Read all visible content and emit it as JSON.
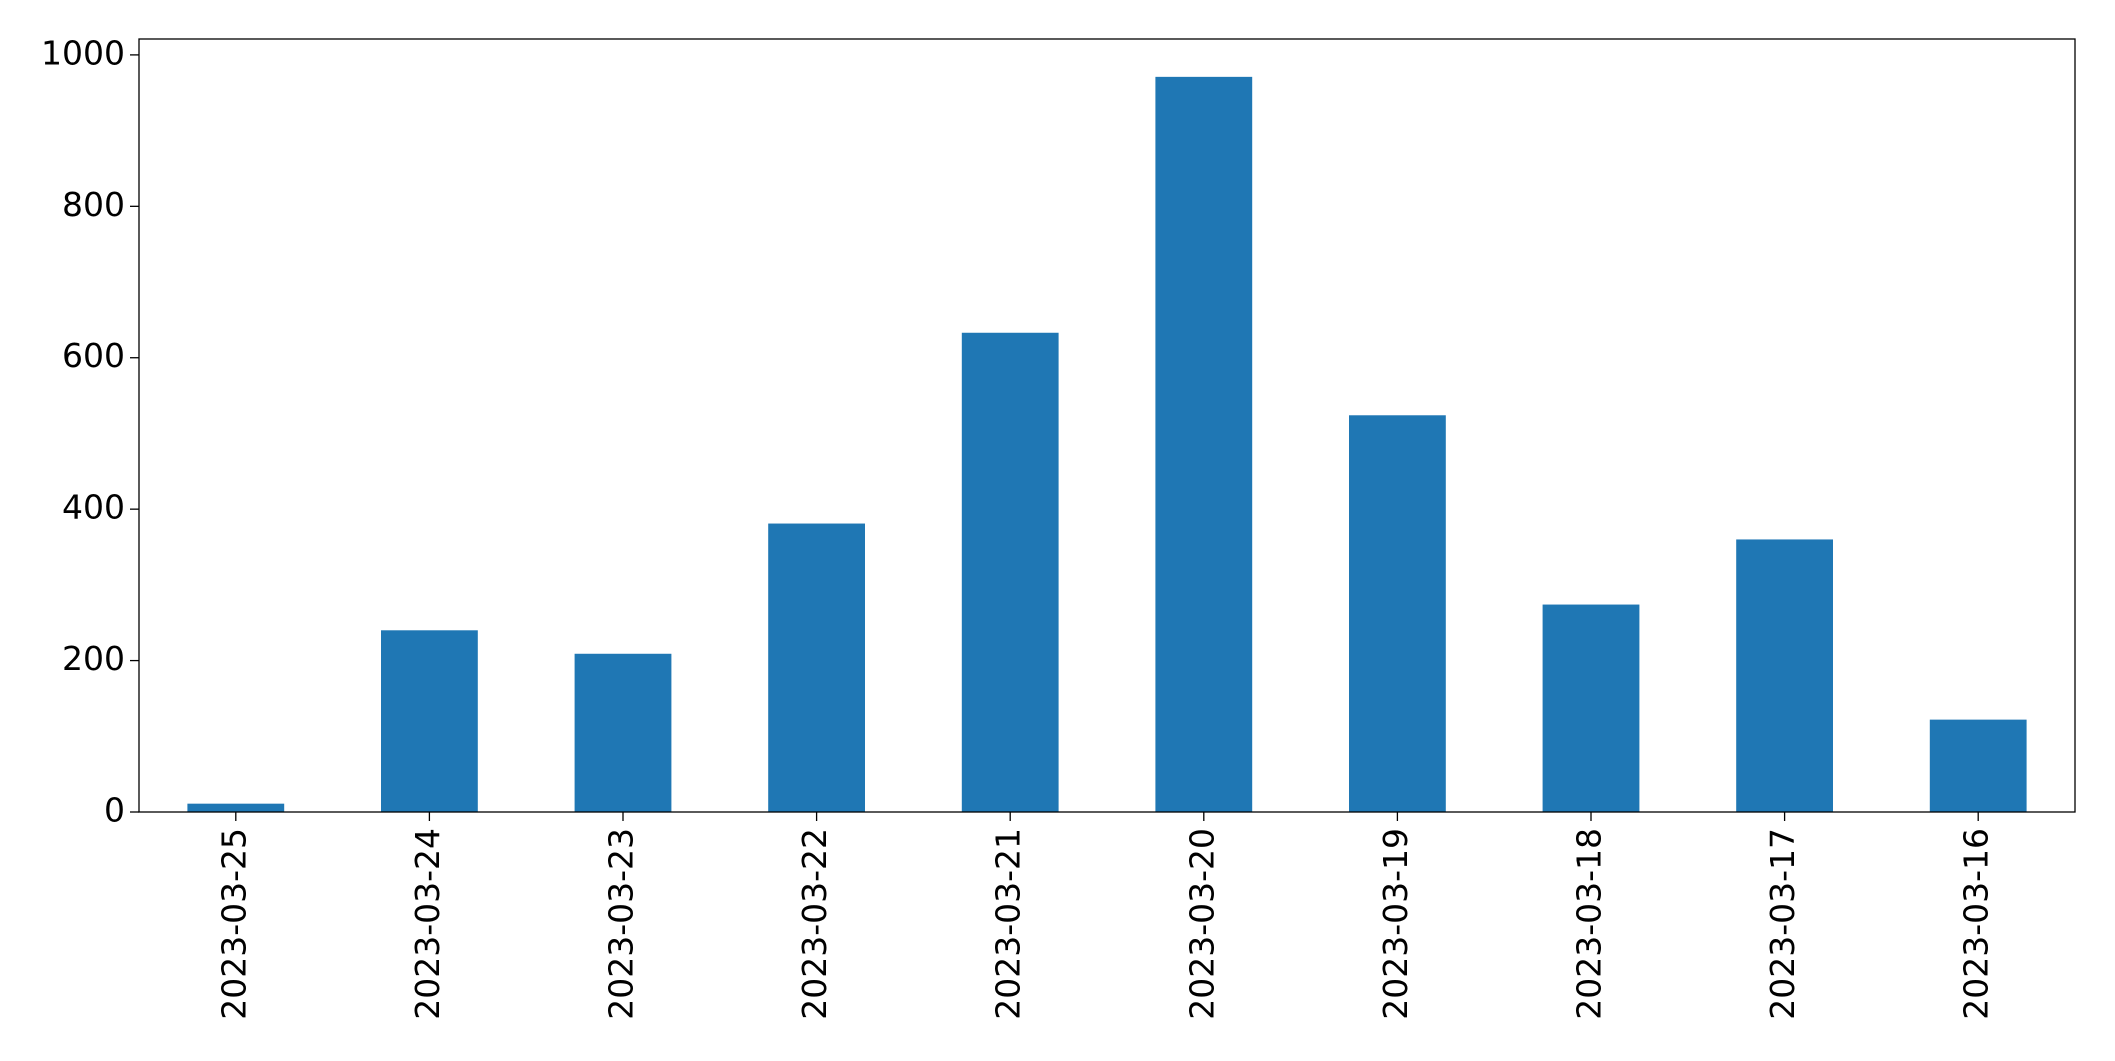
{
  "chart_data": {
    "type": "bar",
    "categories": [
      "2023-03-25",
      "2023-03-24",
      "2023-03-23",
      "2023-03-22",
      "2023-03-21",
      "2023-03-20",
      "2023-03-19",
      "2023-03-18",
      "2023-03-17",
      "2023-03-16"
    ],
    "values": [
      11,
      240,
      209,
      381,
      633,
      971,
      524,
      274,
      360,
      122
    ],
    "color": "#1f77b4",
    "ylim": [
      0,
      1021
    ],
    "yticks": [
      0,
      200,
      400,
      600,
      800,
      1000
    ],
    "grid": false
  }
}
